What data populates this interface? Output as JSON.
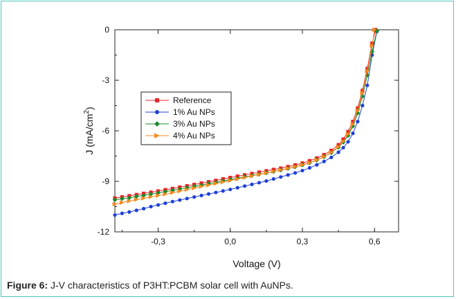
{
  "chart_data": {
    "type": "scatter",
    "title": "",
    "xlabel": "Voltage (V)",
    "ylabel_main": "J (mA/cm",
    "ylabel_sup": "2",
    "ylabel_close": ")",
    "xlim": [
      -0.48,
      0.7
    ],
    "ylim": [
      -12,
      0
    ],
    "x_ticks": [
      -0.3,
      0.0,
      0.3,
      0.6
    ],
    "x_tick_labels": [
      "-0,3",
      "0,0",
      "0,3",
      "0,6"
    ],
    "y_ticks": [
      0,
      -3,
      -6,
      -9,
      -12
    ],
    "y_tick_labels": [
      "0",
      "-3",
      "-6",
      "-9",
      "-12"
    ],
    "grid": false,
    "legend_position": "middle-left",
    "series": [
      {
        "name": "Reference",
        "marker": "square",
        "color": "#e8262a",
        "points": [
          [
            -0.48,
            -10.0
          ],
          [
            -0.45,
            -9.93
          ],
          [
            -0.42,
            -9.86
          ],
          [
            -0.39,
            -9.79
          ],
          [
            -0.36,
            -9.72
          ],
          [
            -0.33,
            -9.65
          ],
          [
            -0.3,
            -9.58
          ],
          [
            -0.27,
            -9.5
          ],
          [
            -0.24,
            -9.43
          ],
          [
            -0.21,
            -9.35
          ],
          [
            -0.18,
            -9.27
          ],
          [
            -0.15,
            -9.19
          ],
          [
            -0.12,
            -9.11
          ],
          [
            -0.09,
            -9.03
          ],
          [
            -0.06,
            -8.95
          ],
          [
            -0.03,
            -8.86
          ],
          [
            0.0,
            -8.78
          ],
          [
            0.03,
            -8.7
          ],
          [
            0.06,
            -8.62
          ],
          [
            0.09,
            -8.54
          ],
          [
            0.12,
            -8.46
          ],
          [
            0.15,
            -8.38
          ],
          [
            0.18,
            -8.3
          ],
          [
            0.21,
            -8.22
          ],
          [
            0.24,
            -8.13
          ],
          [
            0.27,
            -8.03
          ],
          [
            0.3,
            -7.92
          ],
          [
            0.33,
            -7.78
          ],
          [
            0.36,
            -7.62
          ],
          [
            0.39,
            -7.42
          ],
          [
            0.42,
            -7.17
          ],
          [
            0.45,
            -6.83
          ],
          [
            0.47,
            -6.5
          ],
          [
            0.49,
            -6.05
          ],
          [
            0.51,
            -5.45
          ],
          [
            0.53,
            -4.65
          ],
          [
            0.55,
            -3.6
          ],
          [
            0.57,
            -2.3
          ],
          [
            0.59,
            -0.8
          ],
          [
            0.605,
            0.0
          ]
        ]
      },
      {
        "name": "1% Au NPs",
        "marker": "circle",
        "color": "#1f3fd6",
        "points": [
          [
            -0.48,
            -11.0
          ],
          [
            -0.45,
            -10.9
          ],
          [
            -0.42,
            -10.82
          ],
          [
            -0.39,
            -10.72
          ],
          [
            -0.36,
            -10.62
          ],
          [
            -0.33,
            -10.5
          ],
          [
            -0.3,
            -10.4
          ],
          [
            -0.27,
            -10.3
          ],
          [
            -0.24,
            -10.2
          ],
          [
            -0.21,
            -10.11
          ],
          [
            -0.18,
            -10.02
          ],
          [
            -0.15,
            -9.93
          ],
          [
            -0.12,
            -9.84
          ],
          [
            -0.09,
            -9.75
          ],
          [
            -0.06,
            -9.66
          ],
          [
            -0.03,
            -9.57
          ],
          [
            0.0,
            -9.48
          ],
          [
            0.03,
            -9.38
          ],
          [
            0.06,
            -9.28
          ],
          [
            0.09,
            -9.18
          ],
          [
            0.12,
            -9.08
          ],
          [
            0.15,
            -8.98
          ],
          [
            0.18,
            -8.86
          ],
          [
            0.21,
            -8.74
          ],
          [
            0.24,
            -8.62
          ],
          [
            0.27,
            -8.5
          ],
          [
            0.3,
            -8.36
          ],
          [
            0.33,
            -8.2
          ],
          [
            0.36,
            -8.02
          ],
          [
            0.39,
            -7.82
          ],
          [
            0.42,
            -7.58
          ],
          [
            0.45,
            -7.27
          ],
          [
            0.47,
            -7.0
          ],
          [
            0.49,
            -6.65
          ],
          [
            0.51,
            -6.15
          ],
          [
            0.53,
            -5.45
          ],
          [
            0.55,
            -4.5
          ],
          [
            0.57,
            -3.3
          ],
          [
            0.59,
            -1.5
          ],
          [
            0.61,
            -0.1
          ]
        ]
      },
      {
        "name": "3% Au NPs",
        "marker": "diamond",
        "color": "#1a8a2a",
        "points": [
          [
            -0.48,
            -10.1
          ],
          [
            -0.45,
            -10.04
          ],
          [
            -0.42,
            -9.98
          ],
          [
            -0.39,
            -9.9
          ],
          [
            -0.36,
            -9.83
          ],
          [
            -0.33,
            -9.76
          ],
          [
            -0.3,
            -9.69
          ],
          [
            -0.27,
            -9.61
          ],
          [
            -0.24,
            -9.54
          ],
          [
            -0.21,
            -9.46
          ],
          [
            -0.18,
            -9.38
          ],
          [
            -0.15,
            -9.3
          ],
          [
            -0.12,
            -9.22
          ],
          [
            -0.09,
            -9.14
          ],
          [
            -0.06,
            -9.06
          ],
          [
            -0.03,
            -8.98
          ],
          [
            0.0,
            -8.9
          ],
          [
            0.03,
            -8.82
          ],
          [
            0.06,
            -8.74
          ],
          [
            0.09,
            -8.66
          ],
          [
            0.12,
            -8.58
          ],
          [
            0.15,
            -8.5
          ],
          [
            0.18,
            -8.42
          ],
          [
            0.21,
            -8.33
          ],
          [
            0.24,
            -8.24
          ],
          [
            0.27,
            -8.14
          ],
          [
            0.3,
            -8.03
          ],
          [
            0.33,
            -7.9
          ],
          [
            0.36,
            -7.74
          ],
          [
            0.39,
            -7.54
          ],
          [
            0.42,
            -7.3
          ],
          [
            0.45,
            -6.98
          ],
          [
            0.47,
            -6.68
          ],
          [
            0.49,
            -6.28
          ],
          [
            0.51,
            -5.72
          ],
          [
            0.53,
            -4.95
          ],
          [
            0.55,
            -3.95
          ],
          [
            0.57,
            -2.7
          ],
          [
            0.59,
            -1.3
          ],
          [
            0.61,
            -0.05
          ]
        ]
      },
      {
        "name": "4% Au NPs",
        "marker": "triangle-right",
        "color": "#f58a1f",
        "points": [
          [
            -0.48,
            -10.35
          ],
          [
            -0.45,
            -10.26
          ],
          [
            -0.42,
            -10.17
          ],
          [
            -0.39,
            -10.08
          ],
          [
            -0.36,
            -10.0
          ],
          [
            -0.33,
            -9.92
          ],
          [
            -0.3,
            -9.84
          ],
          [
            -0.27,
            -9.76
          ],
          [
            -0.24,
            -9.67
          ],
          [
            -0.21,
            -9.58
          ],
          [
            -0.18,
            -9.49
          ],
          [
            -0.15,
            -9.4
          ],
          [
            -0.12,
            -9.31
          ],
          [
            -0.09,
            -9.22
          ],
          [
            -0.06,
            -9.13
          ],
          [
            -0.03,
            -9.04
          ],
          [
            0.0,
            -8.95
          ],
          [
            0.03,
            -8.86
          ],
          [
            0.06,
            -8.77
          ],
          [
            0.09,
            -8.68
          ],
          [
            0.12,
            -8.59
          ],
          [
            0.15,
            -8.5
          ],
          [
            0.18,
            -8.41
          ],
          [
            0.21,
            -8.32
          ],
          [
            0.24,
            -8.23
          ],
          [
            0.27,
            -8.13
          ],
          [
            0.3,
            -8.02
          ],
          [
            0.33,
            -7.89
          ],
          [
            0.36,
            -7.73
          ],
          [
            0.39,
            -7.53
          ],
          [
            0.42,
            -7.28
          ],
          [
            0.45,
            -6.95
          ],
          [
            0.47,
            -6.63
          ],
          [
            0.49,
            -6.2
          ],
          [
            0.51,
            -5.6
          ],
          [
            0.53,
            -4.8
          ],
          [
            0.55,
            -3.75
          ],
          [
            0.57,
            -2.45
          ],
          [
            0.59,
            -0.95
          ],
          [
            0.6,
            0.0
          ]
        ]
      }
    ]
  },
  "caption": {
    "label": "Figure 6:",
    "text": " J-V characteristics of P3HT:PCBM solar cell with AuNPs."
  }
}
